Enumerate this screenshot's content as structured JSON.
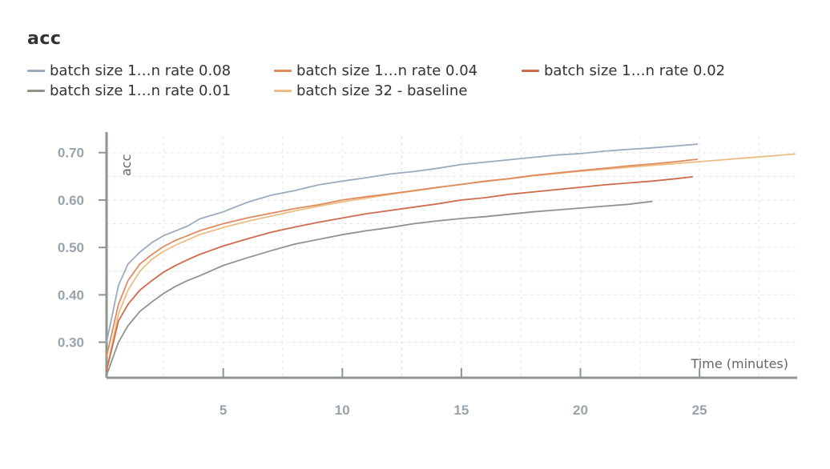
{
  "title": "acc",
  "legend": [
    {
      "label": "batch size 1…n rate 0.08",
      "color": "#9aabbf"
    },
    {
      "label": "batch size 1…n rate 0.04",
      "color": "#e08a5e"
    },
    {
      "label": "batch size 1…n rate 0.02",
      "color": "#cf6b4c"
    },
    {
      "label": "batch size 1…n rate 0.01",
      "color": "#8c948a"
    },
    {
      "label": "batch size 32 - baseline",
      "color": "#ecbd82"
    }
  ],
  "chart_data": {
    "type": "line",
    "title": "acc",
    "xlabel": "Time (minutes)",
    "ylabel": "acc",
    "xlim": [
      0.1,
      29.1
    ],
    "ylim": [
      0.225,
      0.735
    ],
    "x_ticks": [
      5,
      10,
      15,
      20,
      25
    ],
    "y_ticks": [
      0.3,
      0.4,
      0.5,
      0.6,
      0.7
    ],
    "x_tick_labels": [
      "5",
      "10",
      "15",
      "20",
      "25"
    ],
    "y_tick_labels": [
      "0.30",
      "0.40",
      "0.50",
      "0.60",
      "0.70"
    ],
    "grid": true,
    "series": [
      {
        "name": "batch size 1…n rate 0.08",
        "color": "#9aabbf",
        "x": [
          0.1,
          0.6,
          1.0,
          1.5,
          2.0,
          2.5,
          3.0,
          3.5,
          4.0,
          5.0,
          6.0,
          7.0,
          8.0,
          9.0,
          10.0,
          11.0,
          12.0,
          13.0,
          14.0,
          15.0,
          16.0,
          17.0,
          18.0,
          19.0,
          20.0,
          21.0,
          22.0,
          23.0,
          24.0,
          24.9
        ],
        "y": [
          0.3,
          0.42,
          0.465,
          0.49,
          0.51,
          0.525,
          0.535,
          0.545,
          0.56,
          0.575,
          0.595,
          0.61,
          0.62,
          0.632,
          0.64,
          0.647,
          0.655,
          0.66,
          0.667,
          0.675,
          0.68,
          0.685,
          0.69,
          0.695,
          0.698,
          0.703,
          0.707,
          0.71,
          0.714,
          0.718
        ]
      },
      {
        "name": "batch size 1…n rate 0.04",
        "color": "#e08a5e",
        "x": [
          0.1,
          0.6,
          1.0,
          1.5,
          2.0,
          2.5,
          3.0,
          3.5,
          4.0,
          5.0,
          6.0,
          7.0,
          8.0,
          9.0,
          10.0,
          11.0,
          12.0,
          13.0,
          14.0,
          15.0,
          16.0,
          17.0,
          18.0,
          19.0,
          20.0,
          21.0,
          22.0,
          23.0,
          24.0,
          24.9
        ],
        "y": [
          0.27,
          0.38,
          0.43,
          0.465,
          0.485,
          0.502,
          0.515,
          0.525,
          0.535,
          0.55,
          0.562,
          0.572,
          0.582,
          0.59,
          0.6,
          0.607,
          0.613,
          0.62,
          0.627,
          0.633,
          0.64,
          0.645,
          0.652,
          0.657,
          0.662,
          0.667,
          0.672,
          0.676,
          0.681,
          0.686
        ]
      },
      {
        "name": "batch size 1…n rate 0.02",
        "color": "#cf6b4c",
        "x": [
          0.1,
          0.6,
          1.0,
          1.5,
          2.0,
          2.5,
          3.0,
          3.5,
          4.0,
          5.0,
          6.0,
          7.0,
          8.0,
          9.0,
          10.0,
          11.0,
          12.0,
          13.0,
          14.0,
          15.0,
          16.0,
          17.0,
          18.0,
          19.0,
          20.0,
          21.0,
          22.0,
          23.0,
          24.0,
          24.7
        ],
        "y": [
          0.24,
          0.345,
          0.38,
          0.41,
          0.43,
          0.448,
          0.462,
          0.474,
          0.485,
          0.503,
          0.518,
          0.532,
          0.543,
          0.553,
          0.562,
          0.571,
          0.578,
          0.585,
          0.592,
          0.6,
          0.605,
          0.612,
          0.617,
          0.622,
          0.627,
          0.632,
          0.636,
          0.64,
          0.645,
          0.649
        ]
      },
      {
        "name": "batch size 1…n rate 0.01",
        "color": "#8c948a",
        "x": [
          0.1,
          0.6,
          1.0,
          1.5,
          2.0,
          2.5,
          3.0,
          3.5,
          4.0,
          5.0,
          6.0,
          7.0,
          8.0,
          9.0,
          10.0,
          11.0,
          12.0,
          13.0,
          14.0,
          15.0,
          16.0,
          17.0,
          18.0,
          19.0,
          20.0,
          21.0,
          22.0,
          23.0
        ],
        "y": [
          0.23,
          0.3,
          0.335,
          0.365,
          0.385,
          0.403,
          0.418,
          0.43,
          0.44,
          0.462,
          0.478,
          0.493,
          0.507,
          0.517,
          0.527,
          0.535,
          0.542,
          0.55,
          0.556,
          0.561,
          0.565,
          0.57,
          0.575,
          0.579,
          0.583,
          0.587,
          0.591,
          0.597
        ]
      },
      {
        "name": "batch size 32 - baseline",
        "color": "#ecbd82",
        "x": [
          0.1,
          0.6,
          1.0,
          1.5,
          2.0,
          2.5,
          3.0,
          3.5,
          4.0,
          5.0,
          6.0,
          7.0,
          8.0,
          9.0,
          10.0,
          11.0,
          12.0,
          13.0,
          14.0,
          15.0,
          16.0,
          17.0,
          18.0,
          19.0,
          20.0,
          21.0,
          22.0,
          23.0,
          24.0,
          25.0,
          26.0,
          27.0,
          28.0,
          29.0
        ],
        "y": [
          0.24,
          0.36,
          0.41,
          0.45,
          0.475,
          0.492,
          0.505,
          0.516,
          0.527,
          0.542,
          0.555,
          0.566,
          0.577,
          0.587,
          0.596,
          0.604,
          0.612,
          0.619,
          0.626,
          0.633,
          0.639,
          0.645,
          0.651,
          0.656,
          0.661,
          0.665,
          0.669,
          0.673,
          0.677,
          0.681,
          0.685,
          0.689,
          0.693,
          0.697
        ]
      }
    ]
  }
}
